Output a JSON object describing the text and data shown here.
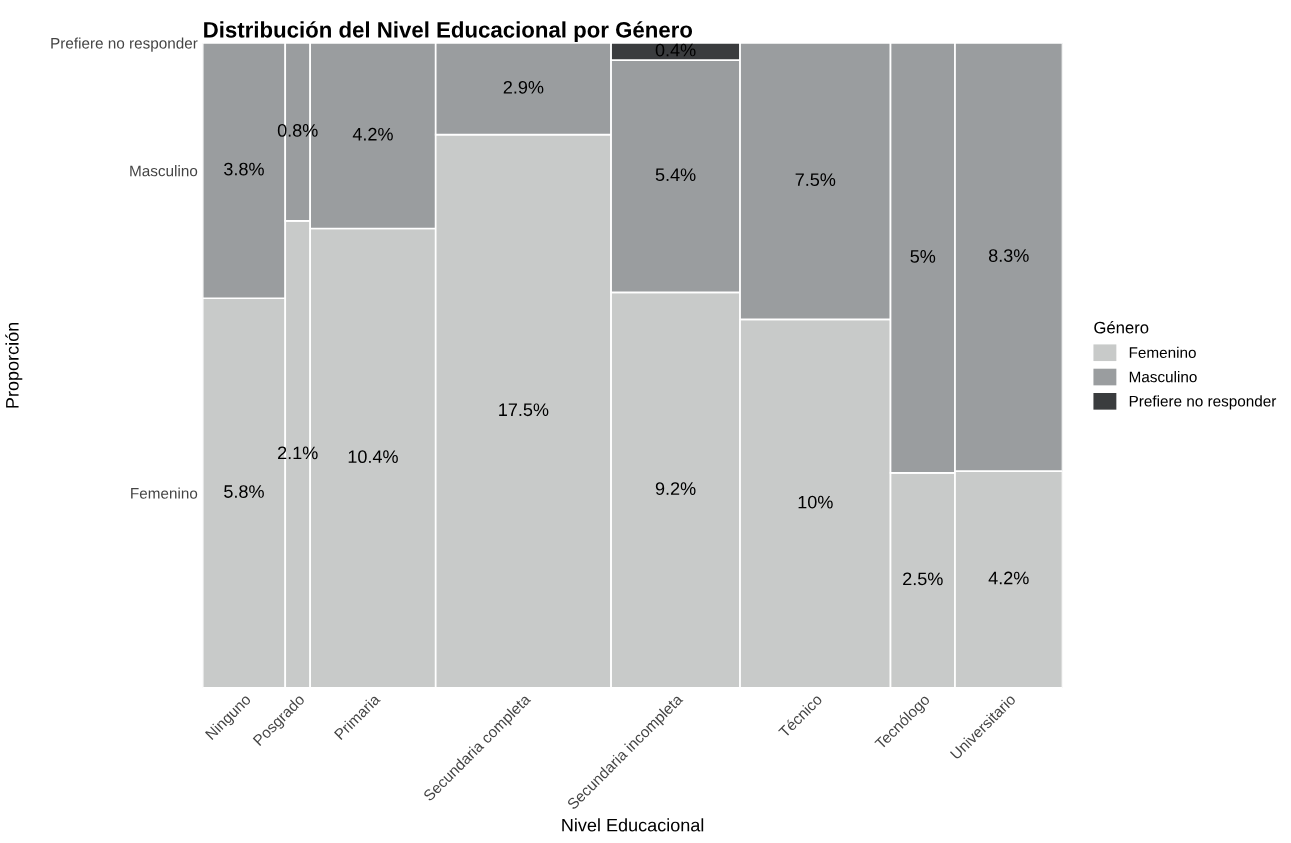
{
  "chart_data": {
    "type": "other",
    "title": "Distribución del Nivel Educacional por Género",
    "xlabel": "Nivel Educacional",
    "ylabel": "Proporción",
    "legend_title": "Género",
    "legend": "right",
    "categories": [
      "Ninguno",
      "Posgrado",
      "Primaria",
      "Secundaria completa",
      "Secundaria incompleta",
      "Técnico",
      "Tecnólogo",
      "Universitario"
    ],
    "series": [
      {
        "name": "Femenino",
        "color": "#c8cac9",
        "values": [
          5.8,
          2.1,
          10.4,
          17.5,
          9.2,
          10,
          2.5,
          4.2
        ],
        "value_labels": [
          "5.8%",
          "2.1%",
          "10.4%",
          "17.5%",
          "9.2%",
          "10%",
          "2.5%",
          "4.2%"
        ]
      },
      {
        "name": "Masculino",
        "color": "#9a9d9f",
        "values": [
          3.8,
          0.8,
          4.2,
          2.9,
          5.4,
          7.5,
          5,
          8.3
        ],
        "value_labels": [
          "3.8%",
          "0.8%",
          "4.2%",
          "2.9%",
          "5.4%",
          "7.5%",
          "5%",
          "8.3%"
        ]
      },
      {
        "name": "Prefiere no responder",
        "color": "#3a3c3e",
        "values": [
          null,
          null,
          null,
          null,
          0.4,
          null,
          null,
          null
        ],
        "value_labels": [
          null,
          null,
          null,
          null,
          "0.4%",
          null,
          null,
          null
        ]
      }
    ]
  }
}
